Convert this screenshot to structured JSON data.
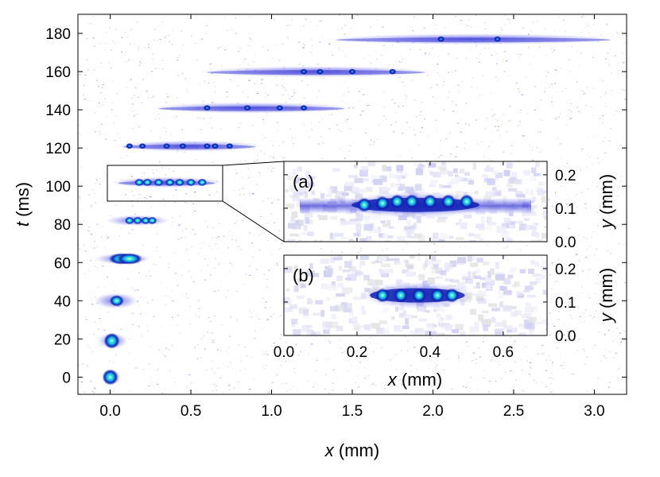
{
  "chart_data": [
    {
      "type": "heatmap",
      "xlabel_var": "x",
      "xlabel_unit": " (mm)",
      "ylabel_var": "t",
      "ylabel_unit": " (ms)",
      "xlim": [
        -0.2,
        3.2
      ],
      "ylim": [
        -9,
        190
      ],
      "xticks": [
        0.0,
        0.5,
        1.0,
        1.5,
        2.0,
        2.5,
        3.0
      ],
      "xtick_labels": [
        "0.0",
        "0.5",
        "1.0",
        "1.5",
        "2.0",
        "2.5",
        "3.0"
      ],
      "yticks": [
        0,
        20,
        40,
        60,
        80,
        100,
        120,
        140,
        160,
        180
      ],
      "ytick_labels": [
        "0",
        "20",
        "40",
        "60",
        "80",
        "100",
        "120",
        "140",
        "160",
        "180"
      ],
      "colormap": [
        "#ffffff",
        "#c8c8f0",
        "#3c3cdc",
        "#0a14a0",
        "#0050d0",
        "#20c8e8",
        "#40f0d0"
      ],
      "frames": [
        {
          "t": 0,
          "x_range": [
            0.0,
            0.02
          ],
          "blobs": [
            0.0
          ]
        },
        {
          "t": 19,
          "x_range": [
            -0.03,
            0.06
          ],
          "blobs": [
            0.01
          ]
        },
        {
          "t": 40,
          "x_range": [
            -0.05,
            0.12
          ],
          "blobs": [
            0.04
          ]
        },
        {
          "t": 62,
          "x_range": [
            -0.05,
            0.2
          ],
          "blobs": [
            0.07,
            0.12
          ]
        },
        {
          "t": 82,
          "x_range": [
            0.02,
            0.32
          ],
          "blobs": [
            0.12,
            0.17,
            0.22,
            0.26
          ]
        },
        {
          "t": 102,
          "x_range": [
            0.05,
            0.65
          ],
          "blobs": [
            0.18,
            0.23,
            0.3,
            0.37,
            0.43,
            0.5,
            0.57
          ]
        },
        {
          "t": 121,
          "x_range": [
            0.08,
            0.9
          ],
          "blobs": [
            0.12,
            0.2,
            0.35,
            0.45,
            0.6,
            0.65,
            0.74
          ]
        },
        {
          "t": 141,
          "x_range": [
            0.3,
            1.45
          ],
          "blobs": [
            0.6,
            0.85,
            1.05,
            1.2
          ]
        },
        {
          "t": 160,
          "x_range": [
            0.6,
            1.95
          ],
          "blobs": [
            1.2,
            1.3,
            1.5,
            1.75
          ]
        },
        {
          "t": 177,
          "x_range": [
            1.4,
            3.1
          ],
          "blobs": [
            2.05,
            2.4
          ]
        }
      ]
    },
    {
      "type": "heatmap",
      "panel_label": "(a)",
      "ylabel_var": "y",
      "ylabel_unit": " (mm)",
      "xlim": [
        0.0,
        0.72
      ],
      "ylim": [
        0.0,
        0.24
      ],
      "yticks": [
        0.0,
        0.1,
        0.2
      ],
      "ytick_labels": [
        "0.0",
        "0.1",
        "0.2"
      ],
      "band_y": 0.1,
      "blobs": [
        {
          "x": 0.22,
          "y": 0.11
        },
        {
          "x": 0.27,
          "y": 0.115
        },
        {
          "x": 0.31,
          "y": 0.12
        },
        {
          "x": 0.35,
          "y": 0.12
        },
        {
          "x": 0.4,
          "y": 0.12
        },
        {
          "x": 0.45,
          "y": 0.12
        },
        {
          "x": 0.5,
          "y": 0.12
        }
      ]
    },
    {
      "type": "heatmap",
      "panel_label": "(b)",
      "xlabel_var": "x",
      "xlabel_unit": " (mm)",
      "ylabel_var": "y",
      "ylabel_unit": " (mm)",
      "xlim": [
        0.0,
        0.72
      ],
      "ylim": [
        0.0,
        0.24
      ],
      "xticks": [
        0.0,
        0.2,
        0.4,
        0.6
      ],
      "xtick_labels": [
        "0.0",
        "0.2",
        "0.4",
        "0.6"
      ],
      "yticks": [
        0.0,
        0.1,
        0.2
      ],
      "ytick_labels": [
        "0.0",
        "0.1",
        "0.2"
      ],
      "blobs": [
        {
          "x": 0.27,
          "y": 0.12
        },
        {
          "x": 0.32,
          "y": 0.12
        },
        {
          "x": 0.37,
          "y": 0.12
        },
        {
          "x": 0.42,
          "y": 0.12
        },
        {
          "x": 0.46,
          "y": 0.12
        }
      ]
    }
  ],
  "zoom_box": {
    "x_range": [
      -0.02,
      0.69
    ],
    "t_range": [
      93,
      111
    ]
  }
}
